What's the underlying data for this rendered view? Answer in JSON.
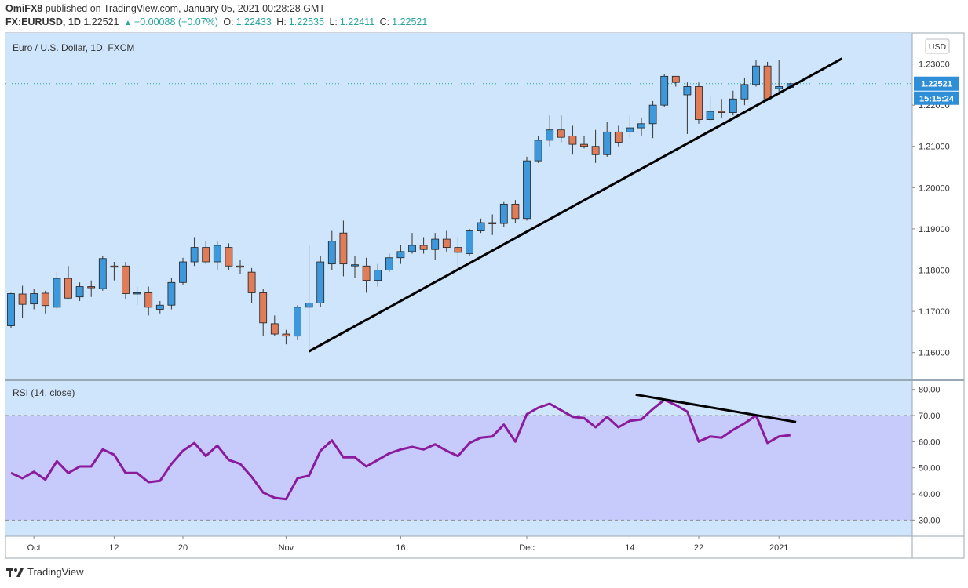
{
  "header": {
    "publisher": "OmiFX8",
    "published_text": "published on TradingView.com, January 05, 2021 00:28:28 GMT",
    "symbol": "FX:EURUSD, 1D",
    "last": "1.22521",
    "change": "+0.00088 (+0.07%)",
    "o_label": "O:",
    "o": "1.22433",
    "h_label": "H:",
    "h": "1.22535",
    "l_label": "L:",
    "l": "1.22411",
    "c_label": "C:",
    "c": "1.22521"
  },
  "footer": {
    "brand": "TradingView"
  },
  "colors": {
    "pane_bg": "#cfe5fb",
    "rsi_band": "#c7cbfb",
    "bull": "#3d98dc",
    "bear": "#e07c58",
    "rsi_line": "#8b1a9c",
    "trend": "#000000",
    "label_bg": "#2f8ed8"
  },
  "chart_data": [
    {
      "type": "candlestick",
      "title": "Euro / U.S. Dollar, 1D, FXCM",
      "currency_label": "USD",
      "ylim": [
        1.155,
        1.236
      ],
      "y_ticks": [
        "1.16000",
        "1.17000",
        "1.18000",
        "1.19000",
        "1.20000",
        "1.21000",
        "1.22000",
        "1.23000"
      ],
      "x_tick_labels": [
        {
          "label": "Oct",
          "bar": 2
        },
        {
          "label": "12",
          "bar": 9
        },
        {
          "label": "20",
          "bar": 15
        },
        {
          "label": "Nov",
          "bar": 24
        },
        {
          "label": "16",
          "bar": 34
        },
        {
          "label": "Dec",
          "bar": 45
        },
        {
          "label": "14",
          "bar": 54
        },
        {
          "label": "22",
          "bar": 60
        },
        {
          "label": "2021",
          "bar": 67
        }
      ],
      "price_label": "1.22521",
      "countdown_label": "15:15:24",
      "last_price": 1.22521,
      "candles": [
        {
          "o": 1.1665,
          "h": 1.1745,
          "l": 1.166,
          "c": 1.1743
        },
        {
          "o": 1.1742,
          "h": 1.1762,
          "l": 1.1685,
          "c": 1.1717
        },
        {
          "o": 1.1718,
          "h": 1.1755,
          "l": 1.1705,
          "c": 1.1743
        },
        {
          "o": 1.1744,
          "h": 1.175,
          "l": 1.1695,
          "c": 1.1714
        },
        {
          "o": 1.171,
          "h": 1.1795,
          "l": 1.1705,
          "c": 1.178
        },
        {
          "o": 1.178,
          "h": 1.181,
          "l": 1.173,
          "c": 1.1732
        },
        {
          "o": 1.1735,
          "h": 1.177,
          "l": 1.1725,
          "c": 1.176
        },
        {
          "o": 1.176,
          "h": 1.1775,
          "l": 1.1735,
          "c": 1.1758
        },
        {
          "o": 1.1755,
          "h": 1.1835,
          "l": 1.175,
          "c": 1.1828
        },
        {
          "o": 1.181,
          "h": 1.182,
          "l": 1.1775,
          "c": 1.1808
        },
        {
          "o": 1.181,
          "h": 1.182,
          "l": 1.173,
          "c": 1.1743
        },
        {
          "o": 1.1745,
          "h": 1.176,
          "l": 1.1715,
          "c": 1.1745
        },
        {
          "o": 1.1745,
          "h": 1.176,
          "l": 1.169,
          "c": 1.171
        },
        {
          "o": 1.1705,
          "h": 1.1725,
          "l": 1.1695,
          "c": 1.1715
        },
        {
          "o": 1.1715,
          "h": 1.178,
          "l": 1.1705,
          "c": 1.177
        },
        {
          "o": 1.177,
          "h": 1.183,
          "l": 1.1765,
          "c": 1.182
        },
        {
          "o": 1.182,
          "h": 1.188,
          "l": 1.181,
          "c": 1.1855
        },
        {
          "o": 1.1855,
          "h": 1.187,
          "l": 1.1815,
          "c": 1.182
        },
        {
          "o": 1.182,
          "h": 1.187,
          "l": 1.18,
          "c": 1.186
        },
        {
          "o": 1.1855,
          "h": 1.1865,
          "l": 1.18,
          "c": 1.181
        },
        {
          "o": 1.181,
          "h": 1.1825,
          "l": 1.179,
          "c": 1.1808
        },
        {
          "o": 1.1795,
          "h": 1.1805,
          "l": 1.172,
          "c": 1.1745
        },
        {
          "o": 1.1745,
          "h": 1.1755,
          "l": 1.164,
          "c": 1.1672
        },
        {
          "o": 1.167,
          "h": 1.169,
          "l": 1.164,
          "c": 1.1645
        },
        {
          "o": 1.1645,
          "h": 1.1655,
          "l": 1.162,
          "c": 1.164
        },
        {
          "o": 1.164,
          "h": 1.1715,
          "l": 1.163,
          "c": 1.171
        },
        {
          "o": 1.171,
          "h": 1.186,
          "l": 1.1605,
          "c": 1.172
        },
        {
          "o": 1.172,
          "h": 1.1835,
          "l": 1.171,
          "c": 1.182
        },
        {
          "o": 1.1815,
          "h": 1.1895,
          "l": 1.18,
          "c": 1.187
        },
        {
          "o": 1.189,
          "h": 1.192,
          "l": 1.1785,
          "c": 1.1815
        },
        {
          "o": 1.1813,
          "h": 1.1835,
          "l": 1.178,
          "c": 1.1813
        },
        {
          "o": 1.181,
          "h": 1.183,
          "l": 1.1745,
          "c": 1.1775
        },
        {
          "o": 1.1775,
          "h": 1.1815,
          "l": 1.176,
          "c": 1.18
        },
        {
          "o": 1.18,
          "h": 1.184,
          "l": 1.1795,
          "c": 1.183
        },
        {
          "o": 1.183,
          "h": 1.186,
          "l": 1.1815,
          "c": 1.1845
        },
        {
          "o": 1.1845,
          "h": 1.189,
          "l": 1.184,
          "c": 1.186
        },
        {
          "o": 1.186,
          "h": 1.188,
          "l": 1.184,
          "c": 1.185
        },
        {
          "o": 1.185,
          "h": 1.189,
          "l": 1.1825,
          "c": 1.1875
        },
        {
          "o": 1.1875,
          "h": 1.1895,
          "l": 1.1845,
          "c": 1.1855
        },
        {
          "o": 1.1855,
          "h": 1.188,
          "l": 1.18,
          "c": 1.1843
        },
        {
          "o": 1.184,
          "h": 1.19,
          "l": 1.1835,
          "c": 1.1895
        },
        {
          "o": 1.1895,
          "h": 1.1925,
          "l": 1.189,
          "c": 1.1915
        },
        {
          "o": 1.1915,
          "h": 1.1935,
          "l": 1.1885,
          "c": 1.1913
        },
        {
          "o": 1.1913,
          "h": 1.1965,
          "l": 1.1905,
          "c": 1.196
        },
        {
          "o": 1.196,
          "h": 1.197,
          "l": 1.1915,
          "c": 1.1925
        },
        {
          "o": 1.1925,
          "h": 1.2075,
          "l": 1.192,
          "c": 1.2065
        },
        {
          "o": 1.2065,
          "h": 1.2125,
          "l": 1.206,
          "c": 1.2115
        },
        {
          "o": 1.2115,
          "h": 1.2175,
          "l": 1.21,
          "c": 1.214
        },
        {
          "o": 1.214,
          "h": 1.2175,
          "l": 1.211,
          "c": 1.2122
        },
        {
          "o": 1.2125,
          "h": 1.215,
          "l": 1.208,
          "c": 1.2105
        },
        {
          "o": 1.2105,
          "h": 1.2125,
          "l": 1.2095,
          "c": 1.21
        },
        {
          "o": 1.21,
          "h": 1.214,
          "l": 1.206,
          "c": 1.208
        },
        {
          "o": 1.208,
          "h": 1.216,
          "l": 1.2075,
          "c": 1.2135
        },
        {
          "o": 1.2135,
          "h": 1.215,
          "l": 1.21,
          "c": 1.211
        },
        {
          "o": 1.2135,
          "h": 1.2175,
          "l": 1.212,
          "c": 1.2145
        },
        {
          "o": 1.2145,
          "h": 1.217,
          "l": 1.2125,
          "c": 1.2155
        },
        {
          "o": 1.2155,
          "h": 1.221,
          "l": 1.212,
          "c": 1.22
        },
        {
          "o": 1.22,
          "h": 1.2275,
          "l": 1.2195,
          "c": 1.227
        },
        {
          "o": 1.227,
          "h": 1.2265,
          "l": 1.2245,
          "c": 1.2255
        },
        {
          "o": 1.2225,
          "h": 1.2255,
          "l": 1.213,
          "c": 1.2245
        },
        {
          "o": 1.2245,
          "h": 1.2255,
          "l": 1.2155,
          "c": 1.2165
        },
        {
          "o": 1.2165,
          "h": 1.222,
          "l": 1.216,
          "c": 1.2185
        },
        {
          "o": 1.2185,
          "h": 1.2215,
          "l": 1.217,
          "c": 1.2182
        },
        {
          "o": 1.2182,
          "h": 1.2235,
          "l": 1.2175,
          "c": 1.2215
        },
        {
          "o": 1.2215,
          "h": 1.2265,
          "l": 1.22,
          "c": 1.225
        },
        {
          "o": 1.225,
          "h": 1.231,
          "l": 1.2245,
          "c": 1.2295
        },
        {
          "o": 1.2295,
          "h": 1.2305,
          "l": 1.221,
          "c": 1.2215
        },
        {
          "o": 1.224,
          "h": 1.231,
          "l": 1.2225,
          "c": 1.2245
        },
        {
          "o": 1.2243,
          "h": 1.2254,
          "l": 1.2241,
          "c": 1.2252
        }
      ],
      "trendline": [
        {
          "bar": 26,
          "price": 1.1603
        },
        {
          "bar": 72.5,
          "price": 1.2313
        }
      ]
    },
    {
      "type": "line",
      "title": "RSI (14, close)",
      "ylim": [
        25,
        82
      ],
      "y_ticks": [
        "30.00",
        "40.00",
        "50.00",
        "60.00",
        "70.00",
        "80.00"
      ],
      "band": [
        30,
        70
      ],
      "values": [
        48,
        46,
        48.5,
        45.5,
        52.5,
        48,
        50.5,
        50.5,
        57,
        55,
        48,
        48,
        44.5,
        45,
        51.5,
        56.5,
        59.5,
        54.5,
        58.5,
        53,
        51.5,
        46.5,
        40.5,
        38.5,
        38,
        46,
        47,
        56.5,
        60.5,
        54,
        54,
        50.5,
        53,
        55.5,
        57,
        58,
        57,
        59,
        56.5,
        54.5,
        59.5,
        61.5,
        62,
        66.5,
        60,
        70.5,
        73,
        74.5,
        72,
        69.5,
        69,
        65.5,
        69.5,
        65.5,
        68,
        68.5,
        72.5,
        76,
        74,
        71.5,
        60,
        62,
        61.5,
        64.5,
        67,
        70,
        59.5,
        62,
        62.5
      ],
      "trendline": [
        {
          "bar": 54.5,
          "value": 78
        },
        {
          "bar": 68.5,
          "value": 67.5
        }
      ]
    }
  ]
}
